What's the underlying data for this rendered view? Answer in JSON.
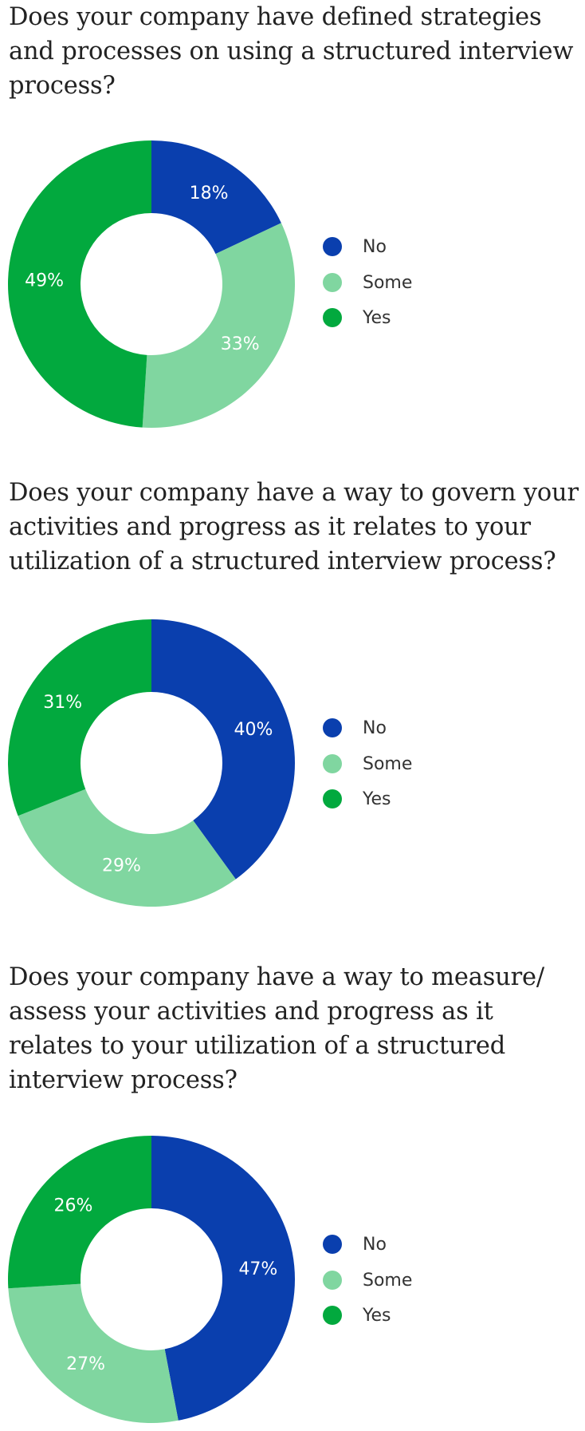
{
  "colors": {
    "No": "#0a3fae",
    "Some": "#80d6a0",
    "Yes": "#02a93e"
  },
  "chart_data": [
    {
      "type": "pie",
      "title": "Does your company have defined strategies and processes on using a structured interview process?",
      "categories": [
        "No",
        "Some",
        "Yes"
      ],
      "values": [
        18,
        33,
        49
      ],
      "value_labels": [
        "18%",
        "33%",
        "49%"
      ],
      "legend": [
        "No",
        "Some",
        "Yes"
      ],
      "legend_position": "right",
      "donut": true
    },
    {
      "type": "pie",
      "title": "Does your company have a way to govern your activities and progress as it relates to your utilization of a structured interview process?",
      "categories": [
        "No",
        "Some",
        "Yes"
      ],
      "values": [
        40,
        29,
        31
      ],
      "value_labels": [
        "40%",
        "29%",
        "31%"
      ],
      "legend": [
        "No",
        "Some",
        "Yes"
      ],
      "legend_position": "right",
      "donut": true
    },
    {
      "type": "pie",
      "title": "Does your company have a way to measure/ assess your activities and progress as it relates to your utilization of a structured interview process?",
      "categories": [
        "No",
        "Some",
        "Yes"
      ],
      "values": [
        47,
        27,
        26
      ],
      "value_labels": [
        "47%",
        "27%",
        "26%"
      ],
      "legend": [
        "No",
        "Some",
        "Yes"
      ],
      "legend_position": "right",
      "donut": true
    }
  ]
}
